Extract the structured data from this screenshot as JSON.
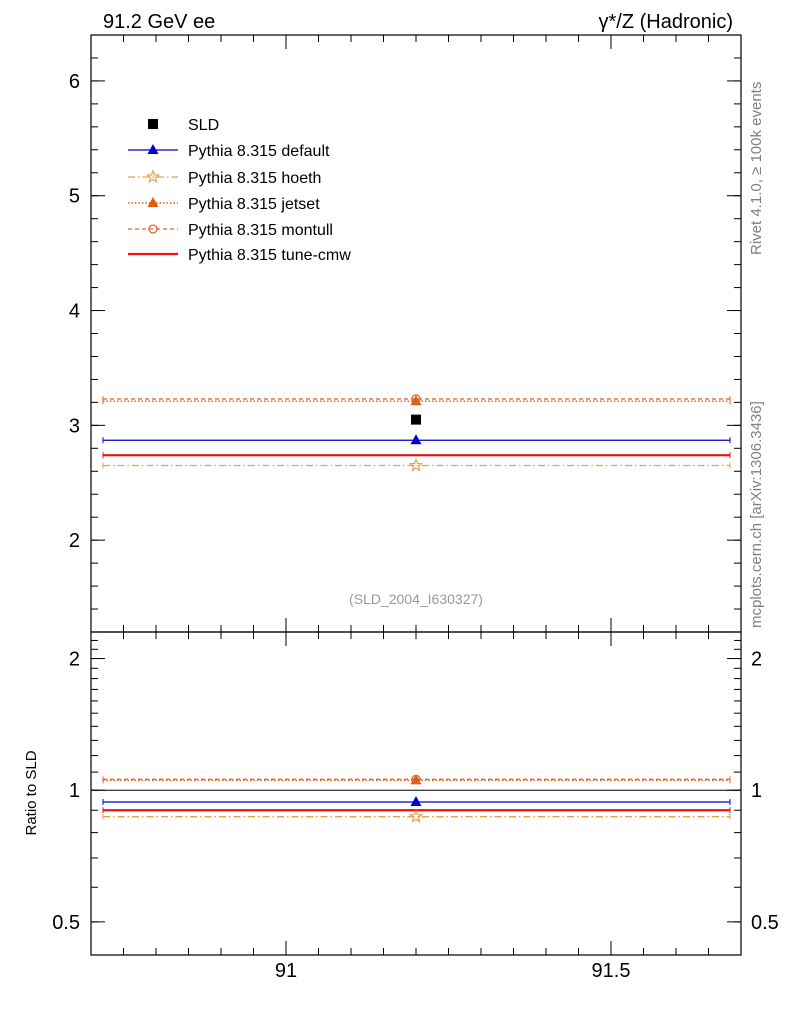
{
  "header": {
    "left_title": "91.2 GeV ee",
    "right_title": "γ*/Z (Hadronic)"
  },
  "side_labels": {
    "rivet": "Rivet 4.1.0, ≥ 100k events",
    "mcplots": "mcplots.cern.ch [arXiv:1306.3436]"
  },
  "analysis_id": "(SLD_2004_I630327)",
  "colors": {
    "data": "#000000",
    "default": "#0000cc",
    "hoeth": "#e8a050",
    "jetset": "#e05a10",
    "montull": "#e06838",
    "tune_cmw": "#ee1111"
  },
  "chart_data": [
    {
      "type": "scatter",
      "name": "main",
      "x": [
        91.2
      ],
      "xlim": [
        90.7,
        91.7
      ],
      "ylim": [
        1.2,
        6.4
      ],
      "yticks": [
        2,
        3,
        4,
        5,
        6
      ],
      "xlabel": "",
      "ylabel": "",
      "legend_position": "top-left",
      "series": [
        {
          "key": "sld",
          "name": "SLD",
          "marker": "square",
          "line": "none",
          "values": [
            3.05
          ]
        },
        {
          "key": "default",
          "name": "Pythia 8.315 default",
          "marker": "triangle",
          "line": "solid",
          "values": [
            2.87
          ]
        },
        {
          "key": "hoeth",
          "name": "Pythia 8.315 hoeth",
          "marker": "star",
          "line": "dashdot",
          "values": [
            2.65
          ]
        },
        {
          "key": "jetset",
          "name": "Pythia 8.315 jetset",
          "marker": "triangle",
          "line": "dotted",
          "values": [
            3.21
          ]
        },
        {
          "key": "montull",
          "name": "Pythia 8.315 montull",
          "marker": "circle",
          "line": "dashed",
          "values": [
            3.23
          ]
        },
        {
          "key": "tune_cmw",
          "name": "Pythia 8.315 tune-cmw",
          "marker": "none",
          "line": "thick",
          "values": [
            2.74
          ]
        }
      ]
    },
    {
      "type": "scatter",
      "name": "ratio",
      "x": [
        91.2
      ],
      "xlim": [
        90.7,
        91.7
      ],
      "ylim": [
        0.42,
        2.3
      ],
      "yscale": "log",
      "yticks": [
        0.5,
        1,
        2
      ],
      "ytick_labels": [
        "0.5",
        "1",
        "2"
      ],
      "xticks": [
        91,
        91.5
      ],
      "xtick_labels": [
        "91",
        "91.5"
      ],
      "ylabel": "Ratio to SLD",
      "series": [
        {
          "key": "sld",
          "name": "SLD",
          "values": [
            1.0
          ]
        },
        {
          "key": "default",
          "name": "Pythia 8.315 default",
          "values": [
            0.94
          ]
        },
        {
          "key": "hoeth",
          "name": "Pythia 8.315 hoeth",
          "values": [
            0.87
          ]
        },
        {
          "key": "jetset",
          "name": "Pythia 8.315 jetset",
          "values": [
            1.053
          ]
        },
        {
          "key": "montull",
          "name": "Pythia 8.315 montull",
          "values": [
            1.059
          ]
        },
        {
          "key": "tune_cmw",
          "name": "Pythia 8.315 tune-cmw",
          "values": [
            0.9
          ]
        }
      ]
    }
  ]
}
